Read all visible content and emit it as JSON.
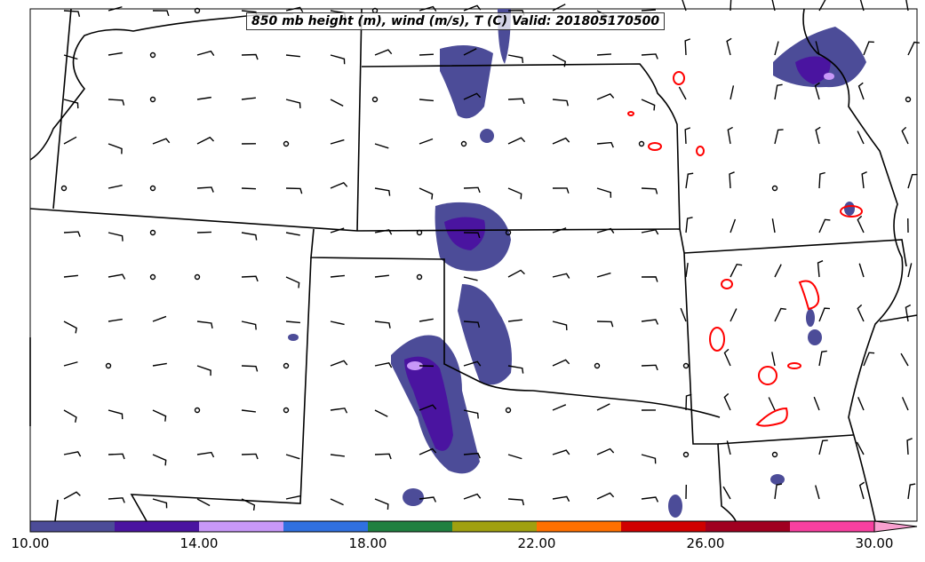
{
  "title": "850 mb height (m), wind (m/s), T (C) Valid: 201805170500",
  "colorbar": {
    "min": 10,
    "max": 30,
    "step": 2,
    "extend": "max",
    "colors": [
      "#4c4c98",
      "#4a14a0",
      "#c898f8",
      "#3070e0",
      "#208040",
      "#a0a010",
      "#ff7000",
      "#d00000",
      "#a00020",
      "#f840a0"
    ],
    "extend_color": "#f8a0d0",
    "tick_labels": [
      "10.00",
      "14.00",
      "18.00",
      "22.00",
      "26.00",
      "30.00"
    ]
  },
  "colors": {
    "contour": "#ff0000",
    "boundary": "#000000"
  }
}
